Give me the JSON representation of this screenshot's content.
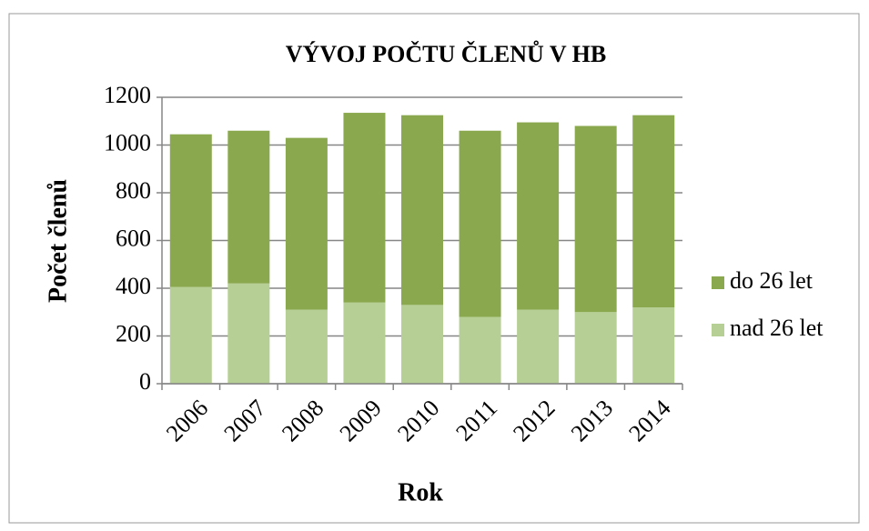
{
  "chart_data": {
    "type": "stacked_bar",
    "title": "VÝVOJ POČTU ČLENŮ V HB",
    "x_label": "Rok",
    "y_label": "Počet členů",
    "categories": [
      "2006",
      "2007",
      "2008",
      "2009",
      "2010",
      "2011",
      "2012",
      "2013",
      "2014"
    ],
    "series": [
      {
        "name": "do 26 let",
        "color": "#8aa84e",
        "values": [
          640,
          640,
          720,
          795,
          795,
          780,
          785,
          780,
          805
        ]
      },
      {
        "name": "nad 26 let",
        "color": "#b6cf95",
        "values": [
          405,
          420,
          310,
          340,
          330,
          280,
          310,
          300,
          320
        ]
      }
    ],
    "ylim": [
      0,
      1200
    ],
    "yticks": [
      0,
      200,
      400,
      600,
      800,
      1000,
      1200
    ],
    "grid": true,
    "legend": "right"
  }
}
